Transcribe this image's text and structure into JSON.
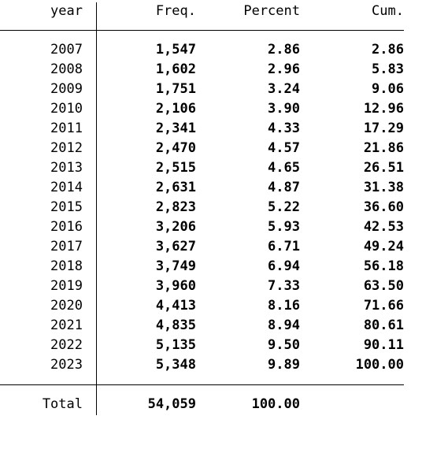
{
  "table": {
    "headers": {
      "year": "year",
      "freq": "Freq.",
      "percent": "Percent",
      "cum": "Cum."
    },
    "rows": [
      {
        "year": "2007",
        "freq": "1,547",
        "percent": "2.86",
        "cum": "2.86"
      },
      {
        "year": "2008",
        "freq": "1,602",
        "percent": "2.96",
        "cum": "5.83"
      },
      {
        "year": "2009",
        "freq": "1,751",
        "percent": "3.24",
        "cum": "9.06"
      },
      {
        "year": "2010",
        "freq": "2,106",
        "percent": "3.90",
        "cum": "12.96"
      },
      {
        "year": "2011",
        "freq": "2,341",
        "percent": "4.33",
        "cum": "17.29"
      },
      {
        "year": "2012",
        "freq": "2,470",
        "percent": "4.57",
        "cum": "21.86"
      },
      {
        "year": "2013",
        "freq": "2,515",
        "percent": "4.65",
        "cum": "26.51"
      },
      {
        "year": "2014",
        "freq": "2,631",
        "percent": "4.87",
        "cum": "31.38"
      },
      {
        "year": "2015",
        "freq": "2,823",
        "percent": "5.22",
        "cum": "36.60"
      },
      {
        "year": "2016",
        "freq": "3,206",
        "percent": "5.93",
        "cum": "42.53"
      },
      {
        "year": "2017",
        "freq": "3,627",
        "percent": "6.71",
        "cum": "49.24"
      },
      {
        "year": "2018",
        "freq": "3,749",
        "percent": "6.94",
        "cum": "56.18"
      },
      {
        "year": "2019",
        "freq": "3,960",
        "percent": "7.33",
        "cum": "63.50"
      },
      {
        "year": "2020",
        "freq": "4,413",
        "percent": "8.16",
        "cum": "71.66"
      },
      {
        "year": "2021",
        "freq": "4,835",
        "percent": "8.94",
        "cum": "80.61"
      },
      {
        "year": "2022",
        "freq": "5,135",
        "percent": "9.50",
        "cum": "90.11"
      },
      {
        "year": "2023",
        "freq": "5,348",
        "percent": "9.89",
        "cum": "100.00"
      }
    ],
    "total": {
      "label": "Total",
      "freq": "54,059",
      "percent": "100.00"
    }
  }
}
